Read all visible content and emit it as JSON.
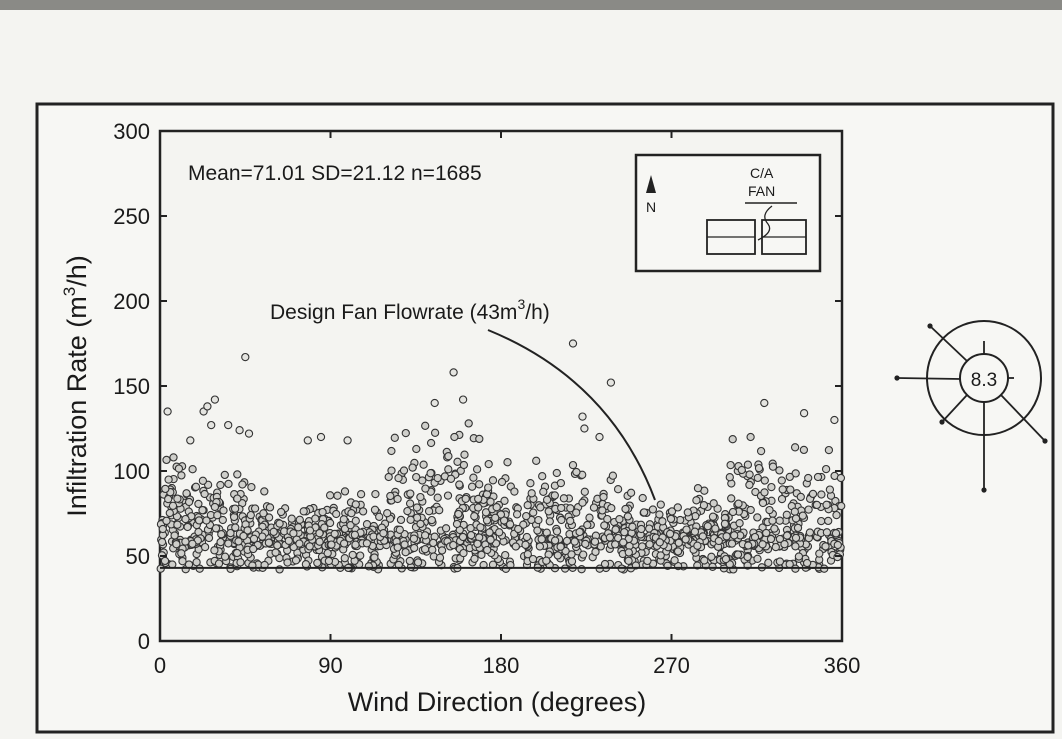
{
  "chart_data": {
    "type": "scatter",
    "x_label": "Wind Direction (degrees)",
    "y_label_main": "Infiltration Rate (m",
    "y_label_sup": "3",
    "y_label_tail": "/h)",
    "xlim": [
      0,
      360
    ],
    "ylim": [
      0,
      300
    ],
    "x_ticks": [
      0,
      90,
      180,
      270,
      360
    ],
    "x_tick_labels": [
      "0",
      "90",
      "180",
      "270",
      "360"
    ],
    "y_ticks": [
      0,
      50,
      100,
      150,
      200,
      250,
      300
    ],
    "y_tick_labels": [
      "0",
      "50",
      "100",
      "150",
      "200",
      "250",
      "300"
    ],
    "stats_text": "Mean=71.01 SD=21.12 n=1685",
    "reference_line": {
      "y": 43,
      "label_main": "Design Fan Flowrate (43m",
      "label_sup": "3",
      "label_tail": "/h)"
    },
    "summary": {
      "mean": 71.01,
      "sd": 21.12,
      "n": 1685
    },
    "outliers": [
      {
        "x": 4,
        "y": 135
      },
      {
        "x": 16,
        "y": 118
      },
      {
        "x": 23,
        "y": 135
      },
      {
        "x": 25,
        "y": 138
      },
      {
        "x": 27,
        "y": 127
      },
      {
        "x": 29,
        "y": 142
      },
      {
        "x": 36,
        "y": 127
      },
      {
        "x": 42,
        "y": 124
      },
      {
        "x": 45,
        "y": 167
      },
      {
        "x": 47,
        "y": 122
      },
      {
        "x": 78,
        "y": 118
      },
      {
        "x": 85,
        "y": 120
      },
      {
        "x": 99,
        "y": 118
      },
      {
        "x": 145,
        "y": 140
      },
      {
        "x": 155,
        "y": 158
      },
      {
        "x": 160,
        "y": 142
      },
      {
        "x": 218,
        "y": 175
      },
      {
        "x": 223,
        "y": 132
      },
      {
        "x": 224,
        "y": 125
      },
      {
        "x": 238,
        "y": 152
      },
      {
        "x": 232,
        "y": 120
      },
      {
        "x": 319,
        "y": 140
      },
      {
        "x": 340,
        "y": 134
      },
      {
        "x": 356,
        "y": 130
      }
    ],
    "point_cloud": {
      "count": 1685,
      "x_range": [
        0,
        360
      ],
      "y_range": [
        37,
        130
      ]
    }
  },
  "inset": {
    "north_label": "N",
    "fan_label_top": "C/A",
    "fan_label_bottom": "FAN"
  },
  "wind_rose": {
    "center_value": "8.3"
  }
}
